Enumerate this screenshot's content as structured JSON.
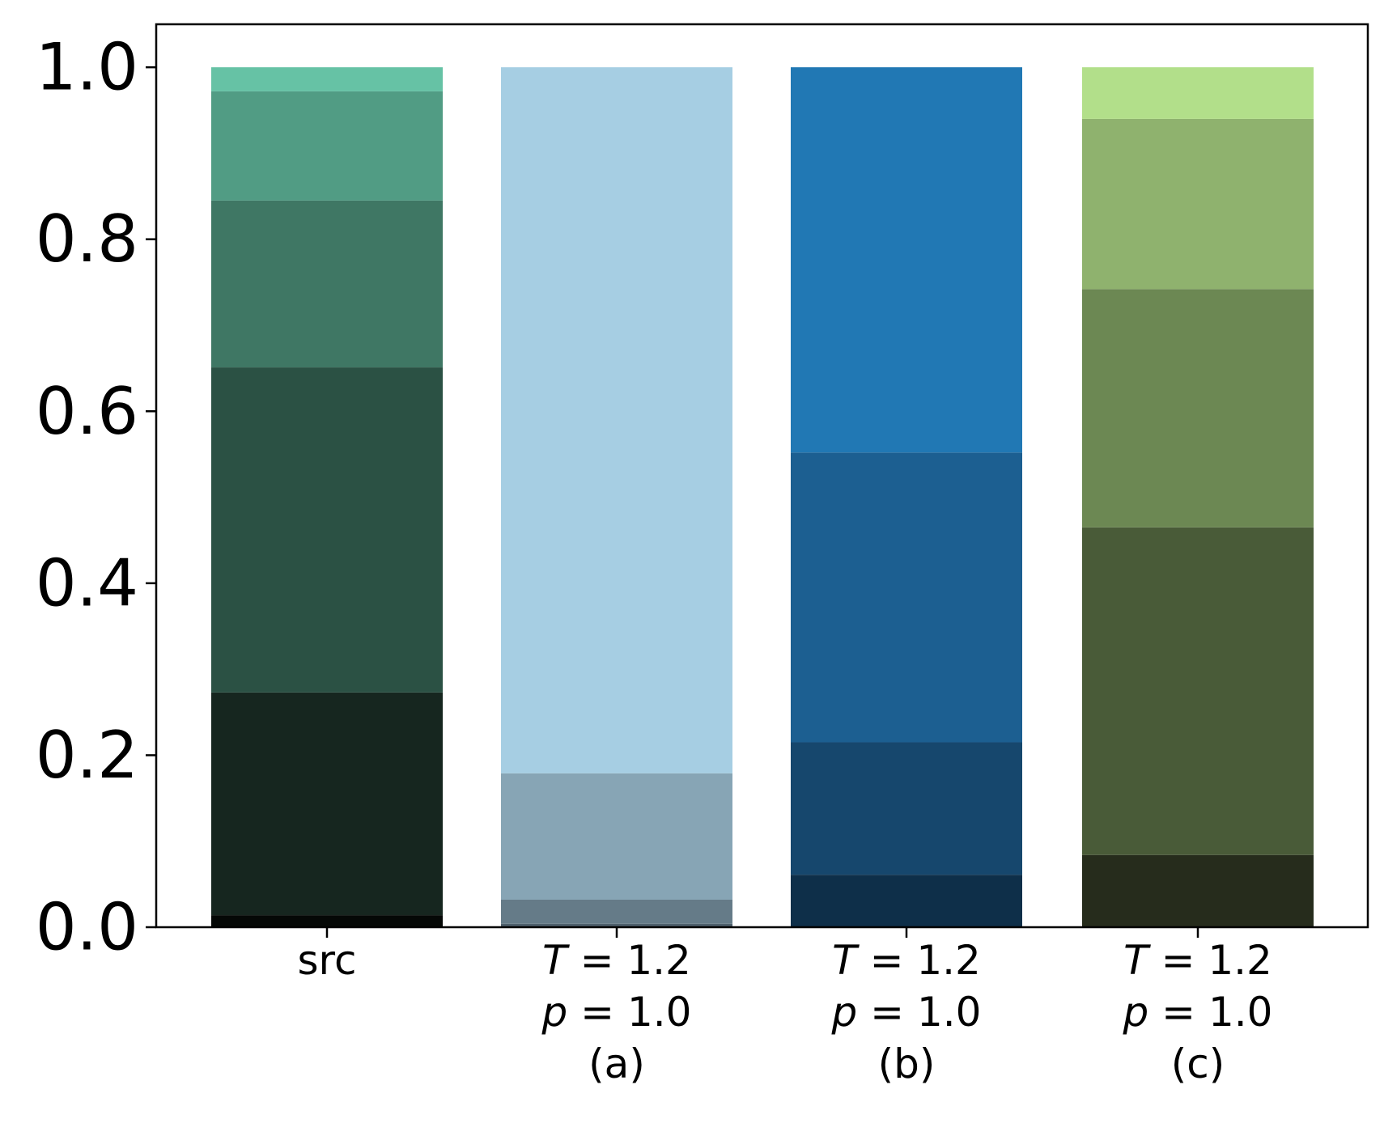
{
  "chart_data": {
    "type": "bar",
    "stacked": true,
    "title": "",
    "xlabel": "",
    "ylabel": "",
    "ylim": [
      0,
      1.05
    ],
    "grid": false,
    "legend": "none",
    "yticks": [
      "0.0",
      "0.2",
      "0.4",
      "0.6",
      "0.8",
      "1.0"
    ],
    "categories": [
      {
        "id": "src",
        "lines": [
          {
            "text": "src",
            "italic_var": false
          }
        ],
        "segments": [
          {
            "value": 0.014,
            "color": "#050806"
          },
          {
            "value": 0.259,
            "color": "#16261f"
          },
          {
            "value": 0.378,
            "color": "#2b5144"
          },
          {
            "value": 0.194,
            "color": "#3f7764"
          },
          {
            "value": 0.127,
            "color": "#519c84"
          },
          {
            "value": 0.028,
            "color": "#66c2a5"
          }
        ]
      },
      {
        "id": "a",
        "lines": [
          {
            "var": "T",
            "text": " = 1.2"
          },
          {
            "var": "p",
            "text": " = 1.0"
          },
          {
            "text": "(a)"
          }
        ],
        "segments": [
          {
            "value": 0.004,
            "color": "#4d5f6b"
          },
          {
            "value": 0.028,
            "color": "#657b88"
          },
          {
            "value": 0.147,
            "color": "#87a5b5"
          },
          {
            "value": 0.821,
            "color": "#a6cee3"
          }
        ]
      },
      {
        "id": "b",
        "lines": [
          {
            "var": "T",
            "text": " = 1.2"
          },
          {
            "var": "p",
            "text": " = 1.0"
          },
          {
            "text": "(b)"
          }
        ],
        "segments": [
          {
            "value": 0.061,
            "color": "#0e2f49"
          },
          {
            "value": 0.154,
            "color": "#16476d"
          },
          {
            "value": 0.337,
            "color": "#1c5f91"
          },
          {
            "value": 0.448,
            "color": "#2178b4"
          }
        ]
      },
      {
        "id": "c",
        "lines": [
          {
            "var": "T",
            "text": " = 1.2"
          },
          {
            "var": "p",
            "text": " = 1.0"
          },
          {
            "text": "(c)"
          }
        ],
        "segments": [
          {
            "value": 0.084,
            "color": "#262c1c"
          },
          {
            "value": 0.381,
            "color": "#495b38"
          },
          {
            "value": 0.277,
            "color": "#6c8853"
          },
          {
            "value": 0.198,
            "color": "#8fb26e"
          },
          {
            "value": 0.06,
            "color": "#b2df8a"
          }
        ]
      }
    ]
  }
}
